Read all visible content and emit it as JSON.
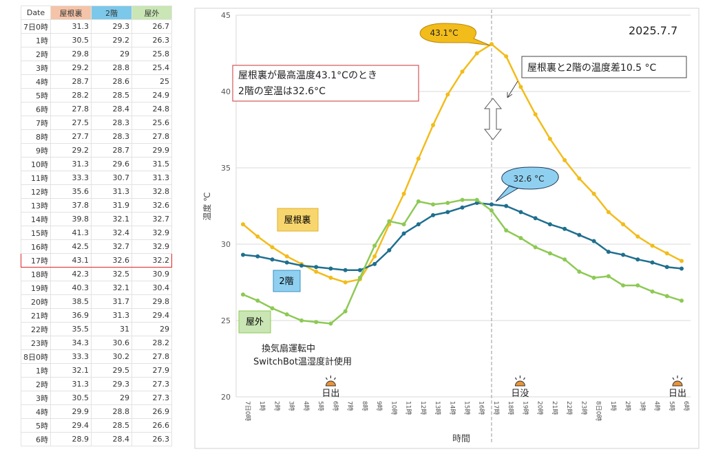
{
  "table": {
    "headers": [
      "Date",
      "屋根裏",
      "2階",
      "屋外"
    ],
    "header_colors": [
      "#ffffff",
      "#f5c4a8",
      "#7cc8ea",
      "#c9e6b4"
    ],
    "highlight_row": "17時",
    "rows": [
      [
        "7日0時",
        "31.3",
        "29.3",
        "26.7"
      ],
      [
        "1時",
        "30.5",
        "29.2",
        "26.3"
      ],
      [
        "2時",
        "29.8",
        "29",
        "25.8"
      ],
      [
        "3時",
        "29.2",
        "28.8",
        "25.4"
      ],
      [
        "4時",
        "28.7",
        "28.6",
        "25"
      ],
      [
        "5時",
        "28.2",
        "28.5",
        "24.9"
      ],
      [
        "6時",
        "27.8",
        "28.4",
        "24.8"
      ],
      [
        "7時",
        "27.5",
        "28.3",
        "25.6"
      ],
      [
        "8時",
        "27.7",
        "28.3",
        "27.8"
      ],
      [
        "9時",
        "29.2",
        "28.7",
        "29.9"
      ],
      [
        "10時",
        "31.3",
        "29.6",
        "31.5"
      ],
      [
        "11時",
        "33.3",
        "30.7",
        "31.3"
      ],
      [
        "12時",
        "35.6",
        "31.3",
        "32.8"
      ],
      [
        "13時",
        "37.8",
        "31.9",
        "32.6"
      ],
      [
        "14時",
        "39.8",
        "32.1",
        "32.7"
      ],
      [
        "15時",
        "41.3",
        "32.4",
        "32.9"
      ],
      [
        "16時",
        "42.5",
        "32.7",
        "32.9"
      ],
      [
        "17時",
        "43.1",
        "32.6",
        "32.2"
      ],
      [
        "18時",
        "42.3",
        "32.5",
        "30.9"
      ],
      [
        "19時",
        "40.3",
        "32.1",
        "30.4"
      ],
      [
        "20時",
        "38.5",
        "31.7",
        "29.8"
      ],
      [
        "21時",
        "36.9",
        "31.3",
        "29.4"
      ],
      [
        "22時",
        "35.5",
        "31",
        "29"
      ],
      [
        "23時",
        "34.3",
        "30.6",
        "28.2"
      ],
      [
        "8日0時",
        "33.3",
        "30.2",
        "27.8"
      ],
      [
        "1時",
        "32.1",
        "29.5",
        "27.9"
      ],
      [
        "2時",
        "31.3",
        "29.3",
        "27.3"
      ],
      [
        "3時",
        "30.5",
        "29",
        "27.3"
      ],
      [
        "4時",
        "29.9",
        "28.8",
        "26.9"
      ],
      [
        "5時",
        "29.4",
        "28.5",
        "26.6"
      ],
      [
        "6時",
        "28.9",
        "28.4",
        "26.3"
      ]
    ]
  },
  "chart_data": {
    "type": "line",
    "title": "2025.7.7",
    "xlabel": "時間",
    "ylabel": "温度 ℃",
    "ylim": [
      20,
      45
    ],
    "yticks": [
      20,
      25,
      30,
      35,
      40,
      45
    ],
    "grid": true,
    "categories": [
      "7日0時",
      "1時",
      "2時",
      "3時",
      "4時",
      "5時",
      "6時",
      "7時",
      "8時",
      "9時",
      "10時",
      "11時",
      "12時",
      "13時",
      "14時",
      "15時",
      "16時",
      "17時",
      "18時",
      "19時",
      "20時",
      "21時",
      "22時",
      "23時",
      "8日0時",
      "1時",
      "2時",
      "3時",
      "4時",
      "5時",
      "6時"
    ],
    "series": [
      {
        "name": "屋根裏",
        "color": "#f2bc1b",
        "values": [
          31.3,
          30.5,
          29.8,
          29.2,
          28.7,
          28.2,
          27.8,
          27.5,
          27.7,
          29.2,
          31.3,
          33.3,
          35.6,
          37.8,
          39.8,
          41.3,
          42.5,
          43.1,
          42.3,
          40.3,
          38.5,
          36.9,
          35.5,
          34.3,
          33.3,
          32.1,
          31.3,
          30.5,
          29.9,
          29.4,
          28.9
        ]
      },
      {
        "name": "2階",
        "color": "#1f6f8f",
        "values": [
          29.3,
          29.2,
          29,
          28.8,
          28.6,
          28.5,
          28.4,
          28.3,
          28.3,
          28.7,
          29.6,
          30.7,
          31.3,
          31.9,
          32.1,
          32.4,
          32.7,
          32.6,
          32.5,
          32.1,
          31.7,
          31.3,
          31,
          30.6,
          30.2,
          29.5,
          29.3,
          29,
          28.8,
          28.5,
          28.4
        ]
      },
      {
        "name": "屋外",
        "color": "#8dc955",
        "values": [
          26.7,
          26.3,
          25.8,
          25.4,
          25,
          24.9,
          24.8,
          25.6,
          27.8,
          29.9,
          31.5,
          31.3,
          32.8,
          32.6,
          32.7,
          32.9,
          32.9,
          32.2,
          30.9,
          30.4,
          29.8,
          29.4,
          29,
          28.2,
          27.8,
          27.9,
          27.3,
          27.3,
          26.9,
          26.6,
          26.3
        ]
      }
    ],
    "annotations": {
      "peak_callout": "43.1°C",
      "indoor_callout": "32.6 °C",
      "red_box_line1": "屋根裏が最高温度43.1°Cのとき",
      "red_box_line2": "2階の室温は32.6°C",
      "diff_box": "屋根裏と2階の温度差10.5 °C",
      "note1": "換気扇運転中",
      "note2": "SwitchBot温湿度計使用",
      "sunrise1": "日出",
      "sunset": "日没",
      "sunrise2": "日出",
      "marker_category": "17時"
    }
  }
}
